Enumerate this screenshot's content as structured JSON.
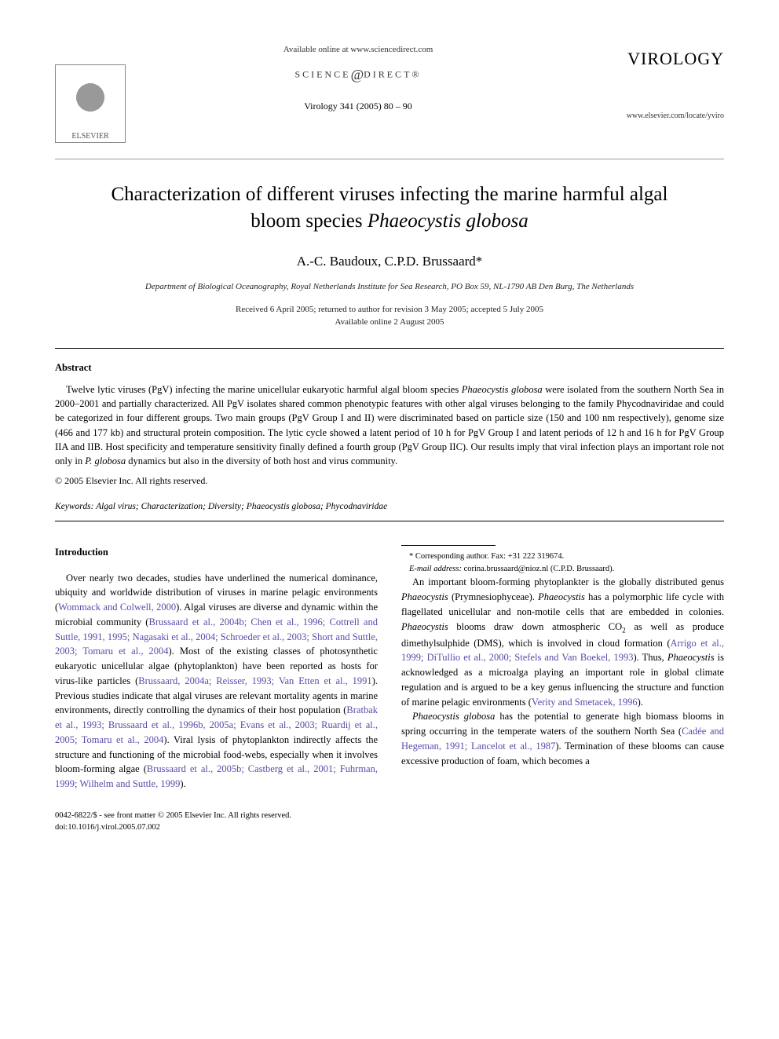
{
  "header": {
    "available_online": "Available online at www.sciencedirect.com",
    "science_direct_left": "SCIENCE",
    "science_direct_right": "DIRECT®",
    "journal_ref": "Virology 341 (2005) 80 – 90",
    "publisher_label": "ELSEVIER",
    "journal_name": "VIROLOGY",
    "journal_url": "www.elsevier.com/locate/yviro"
  },
  "title": {
    "line1": "Characterization of different viruses infecting the marine harmful algal",
    "line2_pre": "bloom species ",
    "line2_species": "Phaeocystis globosa"
  },
  "authors": "A.-C. Baudoux, C.P.D. Brussaard*",
  "affiliation": "Department of Biological Oceanography, Royal Netherlands Institute for Sea Research, PO Box 59, NL-1790 AB Den Burg, The Netherlands",
  "dates": {
    "received": "Received 6 April 2005; returned to author for revision 3 May 2005; accepted 5 July 2005",
    "available": "Available online 2 August 2005"
  },
  "abstract": {
    "heading": "Abstract",
    "text_parts": {
      "p1": "Twelve lytic viruses (PgV) infecting the marine unicellular eukaryotic harmful algal bloom species ",
      "sp1": "Phaeocystis globosa",
      "p2": " were isolated from the southern North Sea in 2000–2001 and partially characterized. All PgV isolates shared common phenotypic features with other algal viruses belonging to the family Phycodnaviridae and could be categorized in four different groups. Two main groups (PgV Group I and II) were discriminated based on particle size (150 and 100 nm respectively), genome size (466 and 177 kb) and structural protein composition. The lytic cycle showed a latent period of 10 h for PgV Group I and latent periods of 12 h and 16 h for PgV Group IIA and IIB. Host specificity and temperature sensitivity finally defined a fourth group (PgV Group IIC). Our results imply that viral infection plays an important role not only in ",
      "sp2": "P. globosa",
      "p3": " dynamics but also in the diversity of both host and virus community."
    },
    "copyright": "© 2005 Elsevier Inc. All rights reserved."
  },
  "keywords": {
    "label": "Keywords:",
    "text": " Algal virus; Characterization; Diversity; ",
    "sp": "Phaeocystis globosa",
    "tail": "; Phycodnaviridae"
  },
  "intro": {
    "heading": "Introduction",
    "para1": {
      "t1": "Over nearly two decades, studies have underlined the numerical dominance, ubiquity and worldwide distribution of viruses in marine pelagic environments (",
      "r1": "Wommack and Colwell, 2000",
      "t2": "). Algal viruses are diverse and dynamic within the microbial community (",
      "r2": "Brussaard et al., 2004b; Chen et al., 1996; Cottrell and Suttle, 1991, 1995; Nagasaki et al., 2004; Schroeder et al., 2003; Short and Suttle, 2003; Tomaru et al., 2004",
      "t3": "). Most of the existing classes of photosynthetic eukaryotic unicellular algae (phytoplankton) have been reported as hosts for virus-like particles (",
      "r3": "Brussaard, 2004a; Reisser, 1993; Van Etten et al., 1991",
      "t4": "). Previous studies indicate that algal viruses are relevant mortality agents in marine environments, directly controlling the dynamics of their host population (",
      "r4": "Bratbak et al., 1993; Brussaard et al., 1996b, 2005a; Evans et al., 2003; Ruardij et al., 2005; Tomaru et al., 2004",
      "t5": "). Viral lysis"
    },
    "para1_cont": {
      "t1": "of phytoplankton indirectly affects the structure and functioning of the microbial food-webs, especially when it involves bloom-forming algae (",
      "r1": "Brussaard et al., 2005b; Castberg et al., 2001; Fuhrman, 1999; Wilhelm and Suttle, 1999",
      "t2": ")."
    },
    "para2": {
      "t1": "An important bloom-forming phytoplankter is the globally distributed genus ",
      "sp1": "Phaeocystis",
      "t2": " (Prymnesiophyceae). ",
      "sp2": "Phaeocystis",
      "t3": " has a polymorphic life cycle with flagellated unicellular and non-motile cells that are embedded in colonies. ",
      "sp3": "Phaeocystis",
      "t4": " blooms draw down atmospheric CO",
      "sub": "2",
      "t5": " as well as produce dimethylsulphide (DMS), which is involved in cloud formation (",
      "r1": "Arrigo et al., 1999; DiTullio et al., 2000; Stefels and Van Boekel, 1993",
      "t6": "). Thus, ",
      "sp4": "Phaeocystis",
      "t7": " is acknowledged as a microalga playing an important role in global climate regulation and is argued to be a key genus influencing the structure and function of marine pelagic environments (",
      "r2": "Verity and Smetacek, 1996",
      "t8": ")."
    },
    "para3": {
      "sp1": "Phaeocystis globosa",
      "t1": " has the potential to generate high biomass blooms in spring occurring in the temperate waters of the southern North Sea (",
      "r1": "Cadée and Hegeman, 1991; Lancelot et al., 1987",
      "t2": "). Termination of these blooms can cause excessive production of foam, which becomes a"
    }
  },
  "footnote": {
    "corr": "* Corresponding author. Fax: +31 222 319674.",
    "email_label": "E-mail address:",
    "email": " corina.brussaard@nioz.nl (C.P.D. Brussaard)."
  },
  "footer": {
    "line1": "0042-6822/$ - see front matter © 2005 Elsevier Inc. All rights reserved.",
    "line2": "doi:10.1016/j.virol.2005.07.002"
  },
  "colors": {
    "ref_link": "#5b4aa8",
    "text": "#000000",
    "background": "#ffffff"
  }
}
